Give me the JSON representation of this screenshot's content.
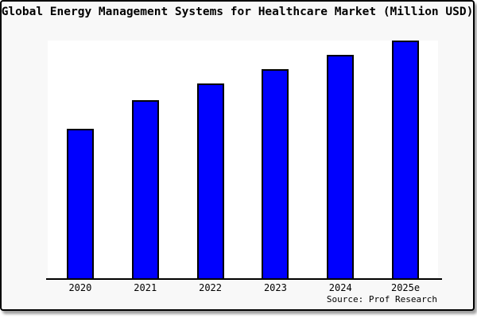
{
  "title": "Global Energy Management Systems for Healthcare Market (Million USD)",
  "source_label": "Source: Prof Research",
  "colors": {
    "bar_fill": "#0000fe",
    "bar_border": "#000000",
    "plot_background": "#ffffff",
    "canvas_background": "#f8f8f8",
    "frame_border": "#000000",
    "text": "#000000"
  },
  "chart_data": {
    "type": "bar",
    "title": "Global Energy Management Systems for Healthcare Market (Million USD)",
    "categories": [
      "2020",
      "2021",
      "2022",
      "2023",
      "2024",
      "2025e"
    ],
    "values": [
      63,
      75,
      82,
      88,
      94,
      100
    ],
    "values_unit": "relative height, % of tallest (2025e) bar; no numeric y-axis shown in chart",
    "xlabel": "",
    "ylabel": "",
    "ylim": [
      0,
      100
    ],
    "grid": false,
    "legend": false,
    "y_axis_shown": false,
    "source": "Source: Prof Research"
  }
}
